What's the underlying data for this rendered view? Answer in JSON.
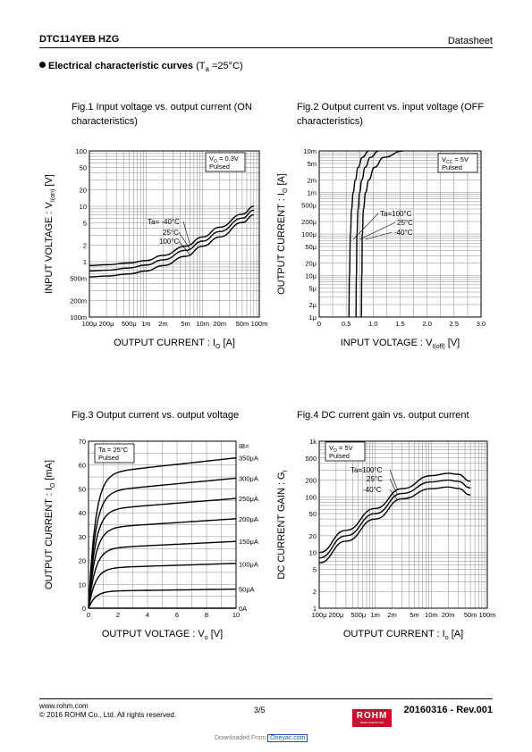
{
  "header": {
    "part": "DTC114YEB HZG",
    "doc_type": "Datasheet"
  },
  "section": {
    "title": "Electrical characteristic curves",
    "cond_pre": "(T",
    "cond_sub": "a",
    "cond_post": " =25°C)"
  },
  "footer": {
    "site": "www.rohm.com",
    "copyright": "© 2016 ROHM Co., Ltd. All rights reserved.",
    "page": "3/5",
    "revision": "20160316 - Rev.001",
    "logo_main": "ROHM",
    "logo_sub": "SEMICONDUCTOR",
    "download_pre": "Downloaded From",
    "download_site": "Oneyac.com"
  },
  "colors": {
    "logo": "#c8102e",
    "grid": "#888888",
    "curve": "#000000"
  },
  "chart_data": [
    {
      "id": "fig1",
      "type": "line",
      "title": "Fig.1 Input voltage vs. output current (ON characteristics)",
      "xlabel": "OUTPUT CURRENT : I",
      "xlabel_sub": "O",
      "xlabel_post": " [A]",
      "ylabel": "INPUT VOLTAGE : V",
      "ylabel_sub": "I(on)",
      "ylabel_post": " [V]",
      "x_scale": "log",
      "y_scale": "log",
      "xlim": [
        0.0001,
        0.1
      ],
      "ylim": [
        0.1,
        100
      ],
      "grid": true,
      "xticks": [
        {
          "v": 0.0001,
          "t": "100μ"
        },
        {
          "v": 0.0002,
          "t": "200μ"
        },
        {
          "v": 0.0005,
          "t": "500μ"
        },
        {
          "v": 0.001,
          "t": "1m"
        },
        {
          "v": 0.002,
          "t": "2m"
        },
        {
          "v": 0.005,
          "t": "5m"
        },
        {
          "v": 0.01,
          "t": "10m"
        },
        {
          "v": 0.02,
          "t": "20m"
        },
        {
          "v": 0.05,
          "t": "50m"
        },
        {
          "v": 0.1,
          "t": "100m"
        }
      ],
      "yticks": [
        {
          "v": 0.1,
          "t": "100m"
        },
        {
          "v": 0.2,
          "t": "200m"
        },
        {
          "v": 0.5,
          "t": "500m"
        },
        {
          "v": 1,
          "t": "1"
        },
        {
          "v": 2,
          "t": "2"
        },
        {
          "v": 5,
          "t": "5"
        },
        {
          "v": 10,
          "t": "10"
        },
        {
          "v": 20,
          "t": "20"
        },
        {
          "v": 50,
          "t": "50"
        },
        {
          "v": 100,
          "t": "100"
        }
      ],
      "conditions": [
        "VO = 0.3V",
        "Pulsed"
      ],
      "legend": [
        "Ta= -40°C",
        "25°C",
        "100°C"
      ],
      "series": [
        {
          "name": "-40°C",
          "x": [
            0.0001,
            0.0002,
            0.0005,
            0.001,
            0.002,
            0.005,
            0.01,
            0.02,
            0.05,
            0.08
          ],
          "y": [
            0.85,
            0.88,
            0.95,
            1.05,
            1.3,
            1.9,
            2.8,
            4.2,
            7.2,
            10
          ]
        },
        {
          "name": "25°C",
          "x": [
            0.0001,
            0.0002,
            0.0005,
            0.001,
            0.002,
            0.005,
            0.01,
            0.02,
            0.05,
            0.08
          ],
          "y": [
            0.68,
            0.7,
            0.77,
            0.87,
            1.08,
            1.6,
            2.35,
            3.5,
            6.1,
            8.5
          ]
        },
        {
          "name": "100°C",
          "x": [
            0.0001,
            0.0002,
            0.0005,
            0.001,
            0.002,
            0.005,
            0.01,
            0.02,
            0.05,
            0.08
          ],
          "y": [
            0.53,
            0.55,
            0.6,
            0.68,
            0.85,
            1.25,
            1.9,
            2.8,
            5.1,
            7
          ]
        }
      ]
    },
    {
      "id": "fig2",
      "type": "line",
      "title": "Fig.2 Output current vs. input voltage (OFF characteristics)",
      "xlabel": "INPUT VOLTAGE : V",
      "xlabel_sub": "I(off)",
      "xlabel_post": " [V]",
      "ylabel": "OUTPUT CURRENT : I",
      "ylabel_sub": "O",
      "ylabel_post": " [A]",
      "x_scale": "linear",
      "y_scale": "log",
      "xlim": [
        0,
        3
      ],
      "ylim": [
        1e-06,
        0.01
      ],
      "grid": true,
      "xticks": [
        {
          "v": 0,
          "t": "0"
        },
        {
          "v": 0.5,
          "t": "0.5"
        },
        {
          "v": 1,
          "t": "1.0"
        },
        {
          "v": 1.5,
          "t": "1.5"
        },
        {
          "v": 2,
          "t": "2.0"
        },
        {
          "v": 2.5,
          "t": "2.5"
        },
        {
          "v": 3,
          "t": "3.0"
        }
      ],
      "yticks": [
        {
          "v": 1e-06,
          "t": "1μ"
        },
        {
          "v": 2e-06,
          "t": "2μ"
        },
        {
          "v": 5e-06,
          "t": "5μ"
        },
        {
          "v": 1e-05,
          "t": "10μ"
        },
        {
          "v": 2e-05,
          "t": "20μ"
        },
        {
          "v": 5e-05,
          "t": "50μ"
        },
        {
          "v": 0.0001,
          "t": "100μ"
        },
        {
          "v": 0.0002,
          "t": "200μ"
        },
        {
          "v": 0.0005,
          "t": "500μ"
        },
        {
          "v": 0.001,
          "t": "1m"
        },
        {
          "v": 0.002,
          "t": "2m"
        },
        {
          "v": 0.005,
          "t": "5m"
        },
        {
          "v": 0.01,
          "t": "10m"
        }
      ],
      "conditions": [
        "VCC = 5V",
        "Pulsed"
      ],
      "legend": [
        "Ta=100°C",
        "25°C",
        "-40°C"
      ],
      "series": [
        {
          "name": "100°C",
          "x": [
            0.55,
            0.56,
            0.58,
            0.6,
            0.63,
            0.67,
            0.72,
            0.8,
            0.92
          ],
          "y": [
            1e-06,
            1e-05,
            0.0001,
            0.0004,
            0.001,
            0.002,
            0.004,
            0.007,
            0.01
          ]
        },
        {
          "name": "25°C",
          "x": [
            0.68,
            0.69,
            0.7,
            0.72,
            0.75,
            0.79,
            0.85,
            0.95,
            1.1
          ],
          "y": [
            1e-06,
            1e-05,
            0.0001,
            0.0004,
            0.001,
            0.002,
            0.004,
            0.007,
            0.01
          ]
        },
        {
          "name": "-40°C",
          "x": [
            0.78,
            0.79,
            0.8,
            0.82,
            0.86,
            0.92,
            1.02,
            1.2,
            1.55
          ],
          "y": [
            1e-06,
            1e-05,
            0.0001,
            0.0004,
            0.001,
            0.002,
            0.004,
            0.007,
            0.01
          ]
        }
      ]
    },
    {
      "id": "fig3",
      "type": "line",
      "title": "Fig.3 Output current vs. output voltage",
      "xlabel": "OUTPUT VOLTAGE : V",
      "xlabel_sub": "o",
      "xlabel_post": " [V]",
      "ylabel": "OUTPUT CURRENT : I",
      "ylabel_sub": "O",
      "ylabel_post": " [mA]",
      "x_scale": "linear",
      "y_scale": "linear",
      "xlim": [
        0,
        10
      ],
      "ylim": [
        0,
        70
      ],
      "grid": true,
      "xticks": [
        {
          "v": 0,
          "t": "0"
        },
        {
          "v": 2,
          "t": "2"
        },
        {
          "v": 4,
          "t": "4"
        },
        {
          "v": 6,
          "t": "6"
        },
        {
          "v": 8,
          "t": "8"
        },
        {
          "v": 10,
          "t": "10"
        }
      ],
      "yticks": [
        {
          "v": 0,
          "t": "0"
        },
        {
          "v": 10,
          "t": "10"
        },
        {
          "v": 20,
          "t": "20"
        },
        {
          "v": 30,
          "t": "30"
        },
        {
          "v": 40,
          "t": "40"
        },
        {
          "v": 50,
          "t": "50"
        },
        {
          "v": 60,
          "t": "60"
        },
        {
          "v": 70,
          "t": "70"
        }
      ],
      "conditions": [
        "Ta = 25°C",
        "Pulsed"
      ],
      "right_header": "IB=",
      "series": [
        {
          "name": "350μA",
          "sat": 63,
          "label_y": 63
        },
        {
          "name": "300μA",
          "sat": 54.5,
          "label_y": 54.5
        },
        {
          "name": "250μA",
          "sat": 46,
          "label_y": 46
        },
        {
          "name": "200μA",
          "sat": 37.5,
          "label_y": 37.5
        },
        {
          "name": "150μA",
          "sat": 28,
          "label_y": 28
        },
        {
          "name": "100μA",
          "sat": 18.8,
          "label_y": 18.5
        },
        {
          "name": "50μA",
          "sat": 8,
          "label_y": 8
        },
        {
          "name": "0A",
          "sat": 0,
          "label_y": 0
        }
      ]
    },
    {
      "id": "fig4",
      "type": "line",
      "title": "Fig.4 DC current gain vs. output current",
      "xlabel": "OUTPUT CURRENT : I",
      "xlabel_sub": "o",
      "xlabel_post": " [A]",
      "ylabel": "DC CURRENT GAIN : G",
      "ylabel_sub": "I",
      "ylabel_post": "",
      "x_scale": "log",
      "y_scale": "log",
      "xlim": [
        0.0001,
        0.1
      ],
      "ylim": [
        1,
        1000
      ],
      "grid": true,
      "xticks": [
        {
          "v": 0.0001,
          "t": "100μ"
        },
        {
          "v": 0.0002,
          "t": "200μ"
        },
        {
          "v": 0.0005,
          "t": "500μ"
        },
        {
          "v": 0.001,
          "t": "1m"
        },
        {
          "v": 0.002,
          "t": "2m"
        },
        {
          "v": 0.005,
          "t": "5m"
        },
        {
          "v": 0.01,
          "t": "10m"
        },
        {
          "v": 0.02,
          "t": "20m"
        },
        {
          "v": 0.05,
          "t": "50m"
        },
        {
          "v": 0.1,
          "t": "100m"
        }
      ],
      "yticks": [
        {
          "v": 1,
          "t": "1"
        },
        {
          "v": 2,
          "t": "2"
        },
        {
          "v": 5,
          "t": "5"
        },
        {
          "v": 10,
          "t": "10"
        },
        {
          "v": 20,
          "t": "20"
        },
        {
          "v": 50,
          "t": "50"
        },
        {
          "v": 100,
          "t": "100"
        },
        {
          "v": 200,
          "t": "200"
        },
        {
          "v": 500,
          "t": "500"
        },
        {
          "v": 1000,
          "t": "1k"
        }
      ],
      "conditions": [
        "VO = 5V",
        "Pulsed"
      ],
      "legend": [
        "Ta=100°C",
        "25°C",
        "-40°C"
      ],
      "series": [
        {
          "name": "100°C",
          "x": [
            0.0001,
            0.0003,
            0.001,
            0.003,
            0.01,
            0.02,
            0.03,
            0.05
          ],
          "y": [
            10,
            25,
            62,
            140,
            240,
            265,
            255,
            190
          ]
        },
        {
          "name": "25°C",
          "x": [
            0.0001,
            0.0003,
            0.001,
            0.003,
            0.01,
            0.02,
            0.03,
            0.05
          ],
          "y": [
            8,
            20,
            50,
            115,
            185,
            200,
            190,
            145
          ]
        },
        {
          "name": "-40°C",
          "x": [
            0.0001,
            0.0003,
            0.001,
            0.003,
            0.01,
            0.02,
            0.03,
            0.05
          ],
          "y": [
            6.5,
            16,
            40,
            92,
            140,
            150,
            142,
            108
          ]
        }
      ]
    }
  ]
}
